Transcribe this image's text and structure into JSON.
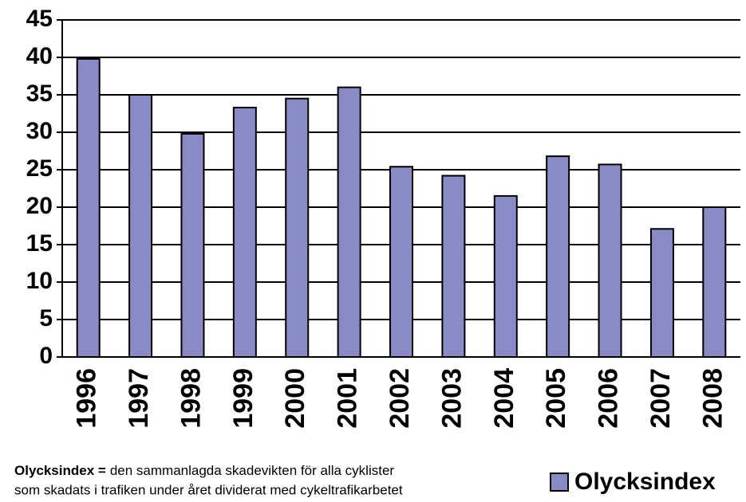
{
  "chart_data": {
    "type": "bar",
    "categories": [
      "1996",
      "1997",
      "1998",
      "1999",
      "2000",
      "2001",
      "2002",
      "2003",
      "2004",
      "2005",
      "2006",
      "2007",
      "2008"
    ],
    "series": [
      {
        "name": "Olycksindex",
        "color": "#8a8ac6",
        "values": [
          39.8,
          35,
          29.8,
          33.3,
          34.5,
          36,
          25.4,
          24.2,
          21.5,
          26.8,
          25.7,
          17.1,
          20
        ]
      }
    ],
    "ylim": [
      0,
      45
    ],
    "yticks": [
      0,
      5,
      10,
      15,
      20,
      25,
      30,
      35,
      40,
      45
    ],
    "grid": true,
    "legend": "bottom-right",
    "annotation": {
      "term": "Olycksindex =",
      "lines": [
        "den sammanlagda skadevikten för alla cyklister",
        "som skadats i trafiken under året dividerat med cykeltrafikarbetet"
      ]
    }
  }
}
